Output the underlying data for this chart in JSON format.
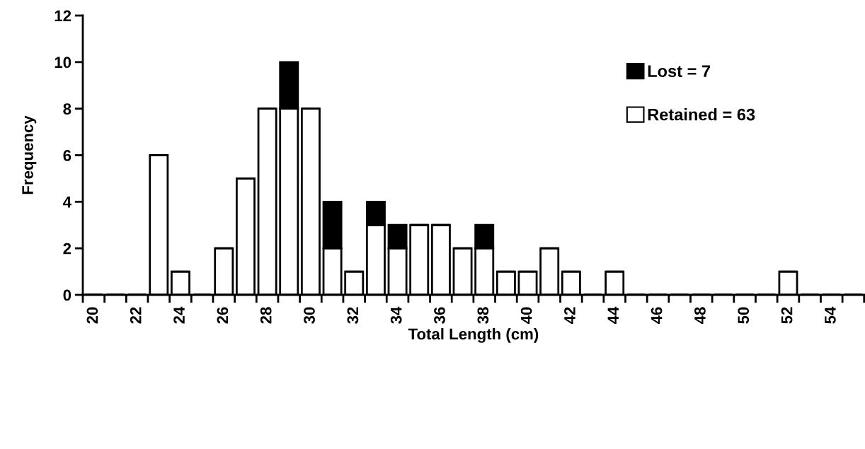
{
  "chart_data": {
    "type": "bar",
    "stacked": true,
    "xlabel": "Total Length (cm)",
    "ylabel": "Frequency",
    "categories": [
      "20",
      null,
      "22",
      null,
      "24",
      null,
      "26",
      null,
      "28",
      null,
      "30",
      null,
      "32",
      null,
      "34",
      null,
      "36",
      null,
      "38",
      null,
      "40",
      null,
      "42",
      null,
      "44",
      null,
      "46",
      null,
      "48",
      null,
      "50",
      null,
      "52",
      null,
      "54",
      null
    ],
    "series": [
      {
        "name": "Retained = 63",
        "color": "#ffffff",
        "values": [
          0,
          0,
          0,
          6,
          1,
          0,
          2,
          5,
          8,
          8,
          8,
          2,
          1,
          3,
          2,
          3,
          3,
          2,
          2,
          1,
          1,
          2,
          1,
          0,
          1,
          0,
          0,
          0,
          0,
          0,
          0,
          0,
          1,
          0,
          0,
          0
        ]
      },
      {
        "name": "Lost = 7",
        "color": "#000000",
        "values": [
          0,
          0,
          0,
          0,
          0,
          0,
          0,
          0,
          0,
          2,
          0,
          2,
          0,
          1,
          1,
          0,
          0,
          0,
          1,
          0,
          0,
          0,
          0,
          0,
          0,
          0,
          0,
          0,
          0,
          0,
          0,
          0,
          0,
          0,
          0,
          0
        ]
      }
    ],
    "ylim": [
      0,
      12
    ],
    "yticks": [
      0,
      2,
      4,
      6,
      8,
      10,
      12
    ],
    "legend": "right",
    "grid": false
  }
}
